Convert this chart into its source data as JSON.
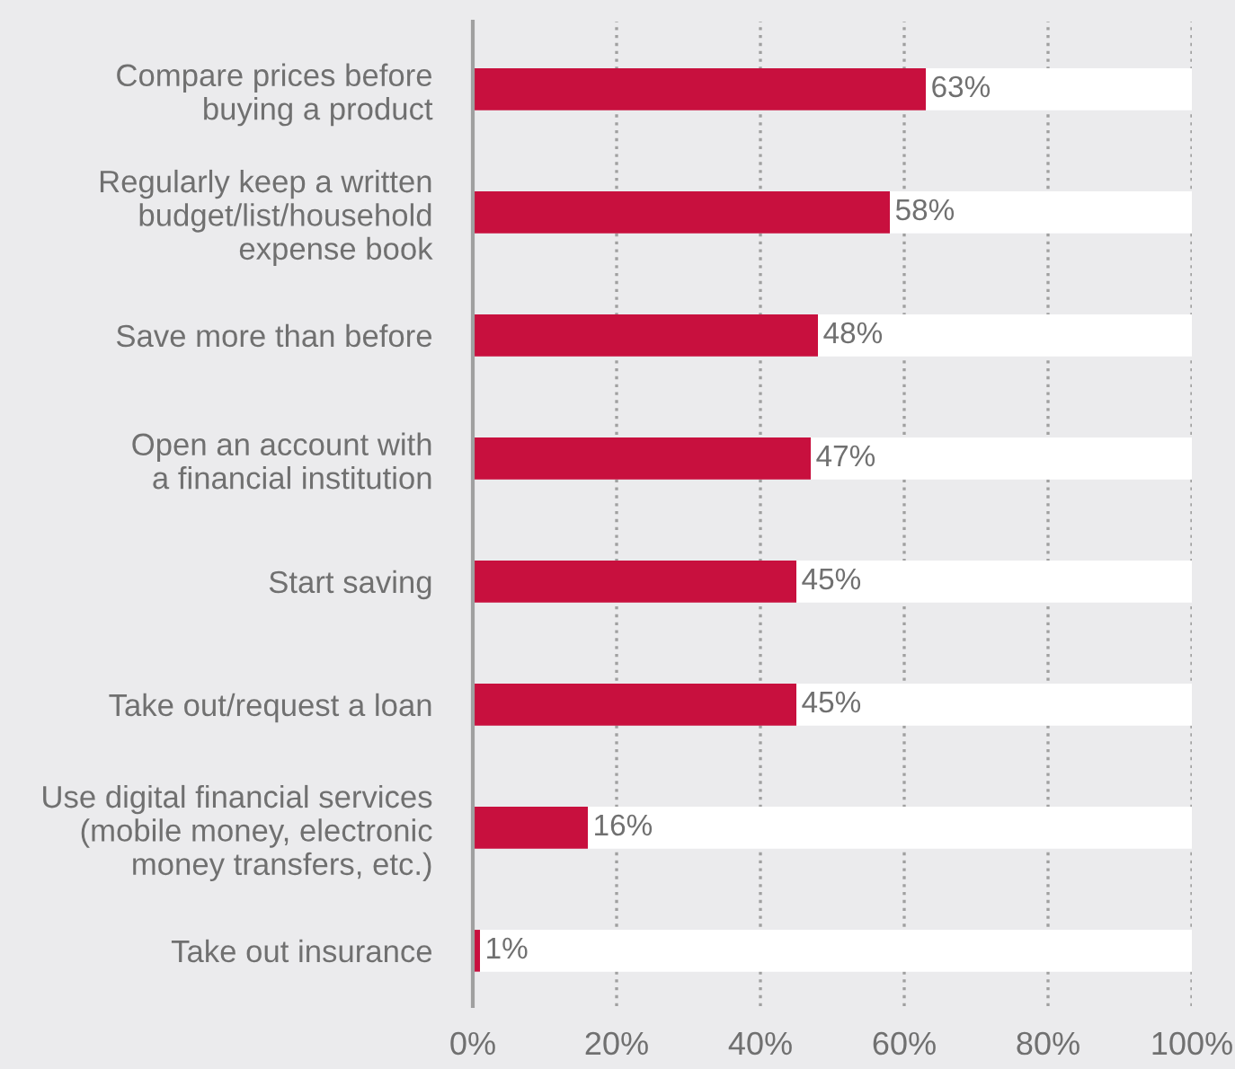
{
  "chart_data": {
    "type": "bar",
    "orientation": "horizontal",
    "stacked": true,
    "categories": [
      "Compare prices before\nbuying a product",
      "Regularly keep a written\nbudget/list/household\nexpense book",
      "Save more than before",
      "Open an account with\na financial institution",
      "Start saving",
      "Take out/request a loan",
      "Use digital financial services\n(mobile money, electronic\nmoney transfers, etc.)",
      "Take out insurance"
    ],
    "series": [
      {
        "color": "#c8103e",
        "values": [
          63,
          58,
          48,
          47,
          45,
          45,
          16,
          1
        ],
        "value_labels": [
          "63%",
          "58%",
          "48%",
          "47%",
          "45%",
          "45%",
          "16%",
          "1%"
        ]
      },
      {
        "color": "#ffffff",
        "values": [
          37,
          42,
          52,
          53,
          55,
          55,
          84,
          99
        ]
      }
    ],
    "xlim": [
      0,
      100
    ],
    "xticks": [
      {
        "value": 0,
        "label": "0%"
      },
      {
        "value": 20,
        "label": "20%"
      },
      {
        "value": 40,
        "label": "40%"
      },
      {
        "value": 60,
        "label": "60%"
      },
      {
        "value": 80,
        "label": "80%"
      },
      {
        "value": 100,
        "label": "100%"
      }
    ],
    "grid": "x",
    "line_style": "dotted"
  }
}
